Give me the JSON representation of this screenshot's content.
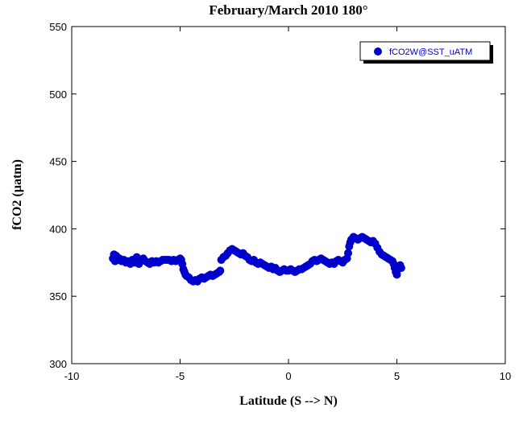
{
  "chart_data": {
    "type": "scatter",
    "title": "February/March 2010 180°",
    "xlabel": "Latitude (S --> N)",
    "ylabel": "fCO2 (µatm)",
    "xlim": [
      -10,
      10
    ],
    "ylim": [
      300,
      550
    ],
    "xticks": [
      -10,
      -5,
      0,
      5,
      10
    ],
    "yticks": [
      300,
      350,
      400,
      450,
      500,
      550
    ],
    "grid": false,
    "legend_position": "top-right",
    "series": [
      {
        "name": "fCO2W@SST_uATM",
        "color": "#0000cc",
        "marker": "circle",
        "points": [
          [
            -8.1,
            378
          ],
          [
            -8.05,
            381
          ],
          [
            -8.0,
            376
          ],
          [
            -7.95,
            380
          ],
          [
            -7.9,
            377
          ],
          [
            -7.8,
            378
          ],
          [
            -7.7,
            376
          ],
          [
            -7.6,
            377
          ],
          [
            -7.5,
            375
          ],
          [
            -7.4,
            376
          ],
          [
            -7.3,
            374
          ],
          [
            -7.2,
            377
          ],
          [
            -7.1,
            375
          ],
          [
            -7.0,
            379
          ],
          [
            -6.95,
            376
          ],
          [
            -6.9,
            374
          ],
          [
            -6.8,
            377
          ],
          [
            -6.7,
            378
          ],
          [
            -6.6,
            376
          ],
          [
            -6.5,
            375
          ],
          [
            -6.4,
            374
          ],
          [
            -6.3,
            376
          ],
          [
            -6.2,
            375
          ],
          [
            -6.1,
            376
          ],
          [
            -6.0,
            375
          ],
          [
            -5.9,
            376
          ],
          [
            -5.8,
            377
          ],
          [
            -5.7,
            377
          ],
          [
            -5.6,
            377
          ],
          [
            -5.5,
            377
          ],
          [
            -5.4,
            376
          ],
          [
            -5.3,
            377
          ],
          [
            -5.2,
            376
          ],
          [
            -5.1,
            377
          ],
          [
            -5.0,
            378
          ],
          [
            -4.95,
            377
          ],
          [
            -4.9,
            374
          ],
          [
            -4.85,
            370
          ],
          [
            -4.8,
            368
          ],
          [
            -4.75,
            366
          ],
          [
            -4.7,
            365
          ],
          [
            -4.6,
            364
          ],
          [
            -4.5,
            362
          ],
          [
            -4.4,
            361
          ],
          [
            -4.3,
            362
          ],
          [
            -4.2,
            361
          ],
          [
            -4.1,
            363
          ],
          [
            -4.0,
            364
          ],
          [
            -3.9,
            363
          ],
          [
            -3.8,
            364
          ],
          [
            -3.7,
            365
          ],
          [
            -3.6,
            366
          ],
          [
            -3.5,
            365
          ],
          [
            -3.4,
            366
          ],
          [
            -3.3,
            367
          ],
          [
            -3.2,
            368
          ],
          [
            -3.15,
            369
          ],
          [
            -3.1,
            377
          ],
          [
            -3.0,
            379
          ],
          [
            -2.9,
            380
          ],
          [
            -2.8,
            382
          ],
          [
            -2.7,
            384
          ],
          [
            -2.6,
            385
          ],
          [
            -2.5,
            384
          ],
          [
            -2.4,
            383
          ],
          [
            -2.3,
            382
          ],
          [
            -2.2,
            381
          ],
          [
            -2.1,
            382
          ],
          [
            -2.0,
            380
          ],
          [
            -1.9,
            379
          ],
          [
            -1.8,
            377
          ],
          [
            -1.7,
            376
          ],
          [
            -1.6,
            377
          ],
          [
            -1.5,
            375
          ],
          [
            -1.4,
            374
          ],
          [
            -1.3,
            375
          ],
          [
            -1.2,
            374
          ],
          [
            -1.1,
            373
          ],
          [
            -1.0,
            372
          ],
          [
            -0.9,
            371
          ],
          [
            -0.8,
            372
          ],
          [
            -0.7,
            370
          ],
          [
            -0.6,
            371
          ],
          [
            -0.5,
            369
          ],
          [
            -0.4,
            368
          ],
          [
            -0.3,
            369
          ],
          [
            -0.2,
            370
          ],
          [
            -0.1,
            369
          ],
          [
            0.0,
            369
          ],
          [
            0.1,
            370
          ],
          [
            0.2,
            369
          ],
          [
            0.3,
            368
          ],
          [
            0.4,
            369
          ],
          [
            0.5,
            370
          ],
          [
            0.6,
            370
          ],
          [
            0.7,
            371
          ],
          [
            0.8,
            372
          ],
          [
            0.9,
            373
          ],
          [
            1.0,
            374
          ],
          [
            1.1,
            376
          ],
          [
            1.2,
            377
          ],
          [
            1.3,
            376
          ],
          [
            1.4,
            377
          ],
          [
            1.5,
            378
          ],
          [
            1.6,
            377
          ],
          [
            1.7,
            376
          ],
          [
            1.8,
            375
          ],
          [
            1.9,
            374
          ],
          [
            2.0,
            375
          ],
          [
            2.1,
            374
          ],
          [
            2.2,
            376
          ],
          [
            2.3,
            377
          ],
          [
            2.4,
            376
          ],
          [
            2.5,
            375
          ],
          [
            2.6,
            377
          ],
          [
            2.7,
            378
          ],
          [
            2.75,
            382
          ],
          [
            2.8,
            387
          ],
          [
            2.85,
            390
          ],
          [
            2.9,
            392
          ],
          [
            3.0,
            394
          ],
          [
            3.1,
            393
          ],
          [
            3.2,
            392
          ],
          [
            3.3,
            393
          ],
          [
            3.4,
            394
          ],
          [
            3.5,
            393
          ],
          [
            3.6,
            392
          ],
          [
            3.7,
            391
          ],
          [
            3.8,
            390
          ],
          [
            3.9,
            391
          ],
          [
            4.0,
            389
          ],
          [
            4.1,
            386
          ],
          [
            4.2,
            383
          ],
          [
            4.3,
            381
          ],
          [
            4.4,
            380
          ],
          [
            4.5,
            379
          ],
          [
            4.6,
            378
          ],
          [
            4.7,
            377
          ],
          [
            4.8,
            376
          ],
          [
            4.85,
            374
          ],
          [
            4.9,
            371
          ],
          [
            4.95,
            368
          ],
          [
            5.0,
            366
          ],
          [
            5.05,
            370
          ],
          [
            5.1,
            372
          ],
          [
            5.15,
            373
          ],
          [
            5.2,
            371
          ]
        ]
      }
    ]
  }
}
